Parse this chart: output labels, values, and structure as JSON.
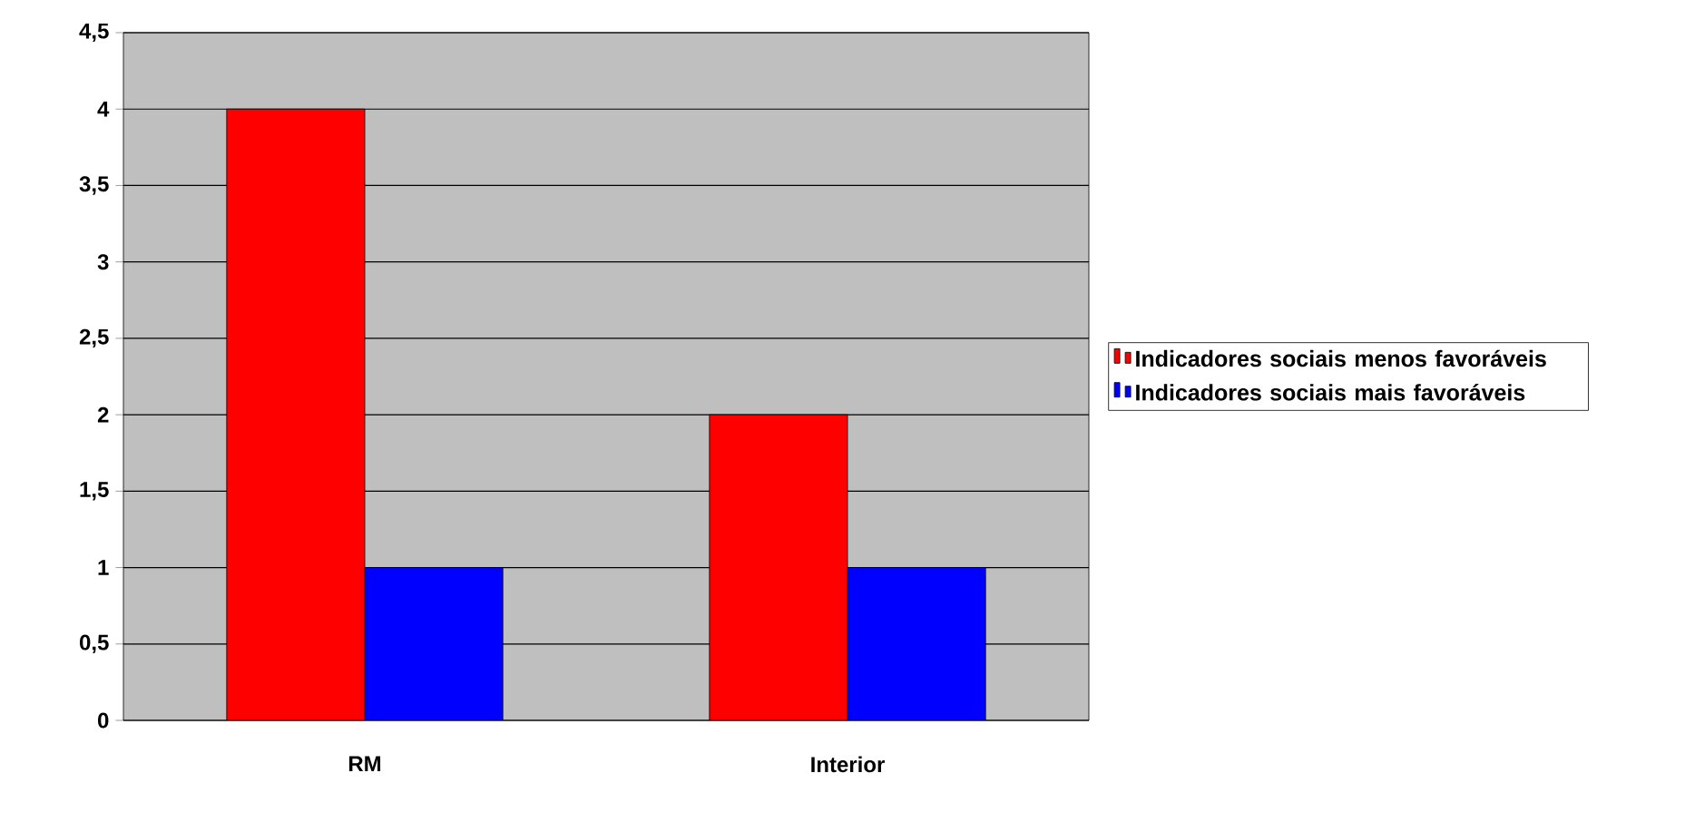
{
  "chart_data": {
    "type": "bar",
    "categories": [
      "RM",
      "Interior"
    ],
    "series": [
      {
        "name": "Indicadores sociais menos favoráveis",
        "color": "#ff0000",
        "values": [
          4,
          2
        ]
      },
      {
        "name": "Indicadores sociais mais favoráveis",
        "color": "#0000ff",
        "values": [
          1,
          1
        ]
      }
    ],
    "ylim": [
      0,
      4.5
    ],
    "yticks": [
      {
        "value": 0,
        "label": "0"
      },
      {
        "value": 0.5,
        "label": "0,5"
      },
      {
        "value": 1,
        "label": "1"
      },
      {
        "value": 1.5,
        "label": "1,5"
      },
      {
        "value": 2,
        "label": "2"
      },
      {
        "value": 2.5,
        "label": "2,5"
      },
      {
        "value": 3,
        "label": "3"
      },
      {
        "value": 3.5,
        "label": "3,5"
      },
      {
        "value": 4,
        "label": "4"
      },
      {
        "value": 4.5,
        "label": "4,5"
      }
    ],
    "grid": "y",
    "legend": "right"
  }
}
